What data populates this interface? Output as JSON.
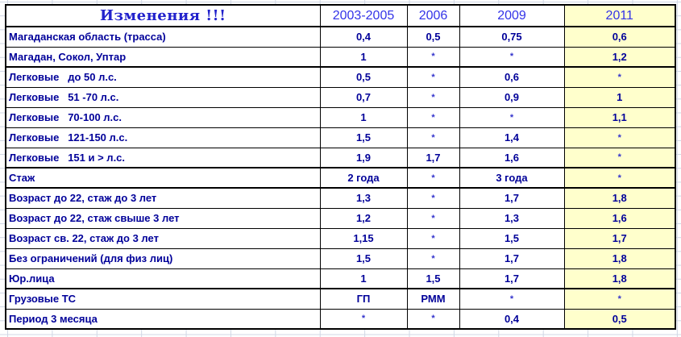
{
  "table": {
    "title": "Изменения !!!",
    "columns": [
      "2003-2005",
      "2006",
      "2009",
      "2011"
    ],
    "highlight_column": "2011",
    "rows": [
      {
        "label": "Магаданская область (трасса)",
        "values": [
          "0,4",
          "0,5",
          "0,75",
          "0,6"
        ]
      },
      {
        "label": "Магадан, Сокол, Уптар",
        "values": [
          "1",
          "*",
          "*",
          "1,2"
        ],
        "section_end": true
      },
      {
        "label": "Легковые   до 50 л.с.",
        "values": [
          "0,5",
          "*",
          "0,6",
          "*"
        ]
      },
      {
        "label": "Легковые   51 -70 л.с.",
        "values": [
          "0,7",
          "*",
          "0,9",
          "1"
        ]
      },
      {
        "label": "Легковые   70-100 л.с.",
        "values": [
          "1",
          "*",
          "*",
          "1,1"
        ]
      },
      {
        "label": "Легковые   121-150 л.с.",
        "values": [
          "1,5",
          "*",
          "1,4",
          "*"
        ]
      },
      {
        "label": "Легковые   151 и > л.с.",
        "values": [
          "1,9",
          "1,7",
          "1,6",
          "*"
        ],
        "section_end": true
      },
      {
        "label": "Стаж",
        "values": [
          "2 года",
          "*",
          "3 года",
          "*"
        ],
        "section_end": true
      },
      {
        "label": "Возраст до 22, стаж до 3 лет",
        "values": [
          "1,3",
          "*",
          "1,7",
          "1,8"
        ]
      },
      {
        "label": "Возраст до 22, стаж свыше 3 лет",
        "values": [
          "1,2",
          "*",
          "1,3",
          "1,6"
        ]
      },
      {
        "label": "Возраст св. 22, стаж до 3 лет",
        "values": [
          "1,15",
          "*",
          "1,5",
          "1,7"
        ]
      },
      {
        "label": "Без ограничений (для физ лиц)",
        "values": [
          "1,5",
          "*",
          "1,7",
          "1,8"
        ]
      },
      {
        "label": "Юр.лица",
        "values": [
          "1",
          "1,5",
          "1,7",
          "1,8"
        ],
        "section_end": true
      },
      {
        "label": "Грузовые ТС",
        "values": [
          "ГП",
          "РММ",
          "*",
          "*"
        ]
      },
      {
        "label": "Период 3 месяца",
        "values": [
          "*",
          "*",
          "0,4",
          "0,5"
        ]
      }
    ],
    "colors": {
      "title_text": "#2222CC",
      "header_text": "#3333E8",
      "cell_text": "#000099",
      "asterisk_text": "#3333CC",
      "highlight_bg": "#FFFFCC",
      "border": "#000000",
      "gridline": "#D0D7E5"
    }
  }
}
